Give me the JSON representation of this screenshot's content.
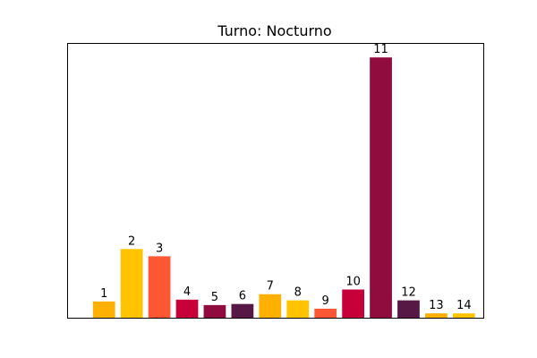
{
  "chart_data": {
    "type": "bar",
    "title": "Turno: Nocturno",
    "xlabel": "",
    "ylabel": "",
    "categories": [
      "1",
      "2",
      "3",
      "4",
      "5",
      "6",
      "7",
      "8",
      "9",
      "10",
      "11",
      "12",
      "13",
      "14"
    ],
    "values": [
      0.45,
      1.9,
      1.7,
      0.5,
      0.35,
      0.38,
      0.65,
      0.48,
      0.25,
      0.78,
      7.2,
      0.48,
      0.12,
      0.12
    ],
    "data_labels": [
      "1",
      "2",
      "3",
      "4",
      "5",
      "6",
      "7",
      "8",
      "9",
      "10",
      "11",
      "12",
      "13",
      "14"
    ],
    "colors": [
      "#FFB000",
      "#FFC300",
      "#FF5733",
      "#C70039",
      "#900C3F",
      "#581845",
      "#FFB000",
      "#FFC300",
      "#FF5733",
      "#C70039",
      "#900C3F",
      "#581845",
      "#FFB000",
      "#FFC300"
    ],
    "ylim": [
      0,
      7.6
    ],
    "axis_ticks": false,
    "grid": false
  }
}
